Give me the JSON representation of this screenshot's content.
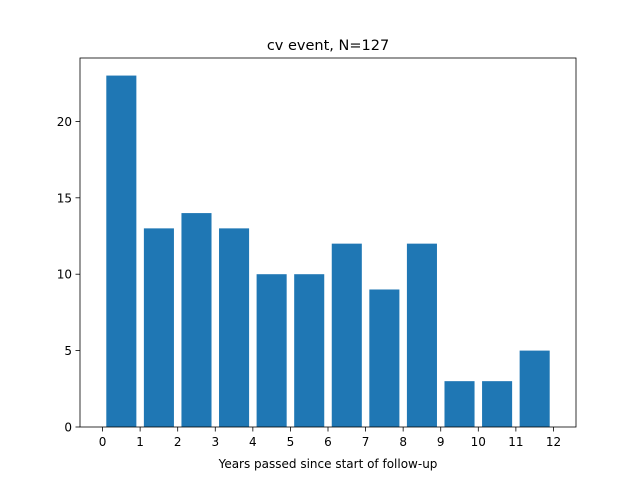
{
  "chart_data": {
    "type": "bar",
    "title": "cv event, N=127",
    "xlabel": "Years passed since start of follow-up",
    "ylabel": "",
    "bar_color": "#1f77b4",
    "bars": [
      {
        "x": 0.5,
        "value": 23
      },
      {
        "x": 1.5,
        "value": 13
      },
      {
        "x": 2.5,
        "value": 14
      },
      {
        "x": 3.5,
        "value": 13
      },
      {
        "x": 4.5,
        "value": 10
      },
      {
        "x": 5.5,
        "value": 10
      },
      {
        "x": 6.5,
        "value": 12
      },
      {
        "x": 7.5,
        "value": 9
      },
      {
        "x": 8.5,
        "value": 12
      },
      {
        "x": 9.5,
        "value": 3
      },
      {
        "x": 10.5,
        "value": 3
      },
      {
        "x": 11.5,
        "value": 5
      }
    ],
    "bar_width": 0.8,
    "xlim": [
      -0.6,
      12.6
    ],
    "ylim": [
      0,
      24.15
    ],
    "xticks": [
      0,
      1,
      2,
      3,
      4,
      5,
      6,
      7,
      8,
      9,
      10,
      11,
      12
    ],
    "yticks": [
      0,
      5,
      10,
      15,
      20
    ],
    "grid": false,
    "legend": "none"
  }
}
